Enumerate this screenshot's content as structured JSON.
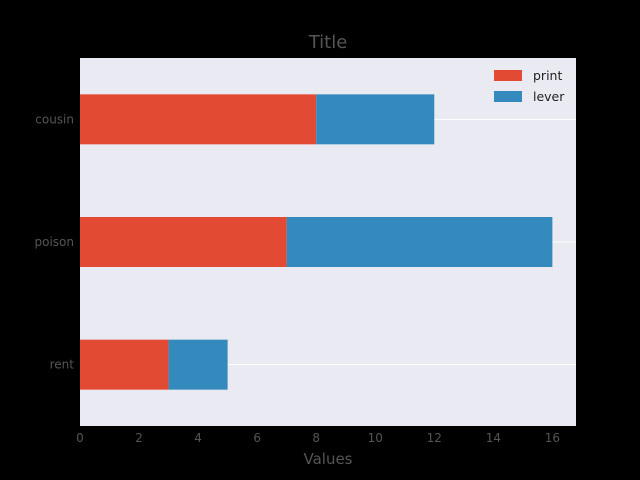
{
  "chart_data": {
    "type": "bar",
    "orientation": "horizontal",
    "stacked": true,
    "title": "Title",
    "xlabel": "Values",
    "ylabel": "",
    "categories": [
      "cousin",
      "poison",
      "rent"
    ],
    "series": [
      {
        "name": "print",
        "values": [
          8,
          7,
          3
        ],
        "color": "#E24A33"
      },
      {
        "name": "lever",
        "values": [
          4,
          9,
          2
        ],
        "color": "#348ABD"
      }
    ],
    "xlim": [
      0,
      16.8
    ],
    "xticks": [
      0,
      2,
      4,
      6,
      8,
      10,
      12,
      14,
      16
    ],
    "grid": true,
    "legend": "top-right",
    "background": "#EAEAF2"
  }
}
